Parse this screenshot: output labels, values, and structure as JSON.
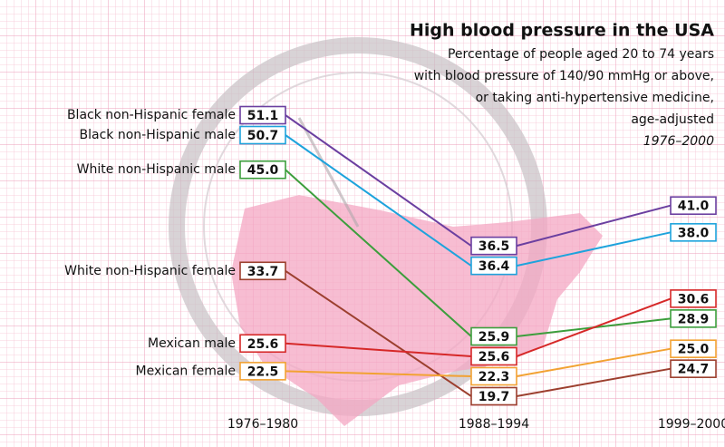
{
  "chart_data": {
    "type": "slope",
    "title": "High blood pressure in the USA",
    "subtitle": [
      "Percentage of people aged 20 to 74 years",
      "with blood pressure of 140/90 mmHg or above,",
      "or taking anti-hypertensive medicine,",
      "age-adjusted"
    ],
    "period": "1976–2000",
    "categories": [
      "1976–1980",
      "1988–1994",
      "1999–2000"
    ],
    "series": [
      {
        "name": "Black non-Hispanic female",
        "color": "#6b3fa0",
        "values": [
          51.1,
          36.5,
          41.0
        ],
        "value_labels": [
          "51.1",
          "36.5",
          "41.0"
        ]
      },
      {
        "name": "Black non-Hispanic male",
        "color": "#1ea3dc",
        "values": [
          50.7,
          36.4,
          38.0
        ],
        "value_labels": [
          "50.7",
          "36.4",
          "38.0"
        ]
      },
      {
        "name": "White non-Hispanic male",
        "color": "#3c9e3c",
        "values": [
          45.0,
          25.9,
          28.9
        ],
        "value_labels": [
          "45.0",
          "25.9",
          "28.9"
        ]
      },
      {
        "name": "White non-Hispanic female",
        "color": "#9c3f2e",
        "values": [
          33.7,
          19.7,
          24.7
        ],
        "value_labels": [
          "33.7",
          "19.7",
          "24.7"
        ]
      },
      {
        "name": "Mexican male",
        "color": "#d62828",
        "values": [
          25.6,
          25.6,
          30.6
        ],
        "value_labels": [
          "25.6",
          "25.6",
          "30.6"
        ]
      },
      {
        "name": "Mexican female",
        "color": "#f2a233",
        "values": [
          22.5,
          22.3,
          25.0
        ],
        "value_labels": [
          "22.5",
          "22.3",
          "25.0"
        ]
      }
    ]
  }
}
